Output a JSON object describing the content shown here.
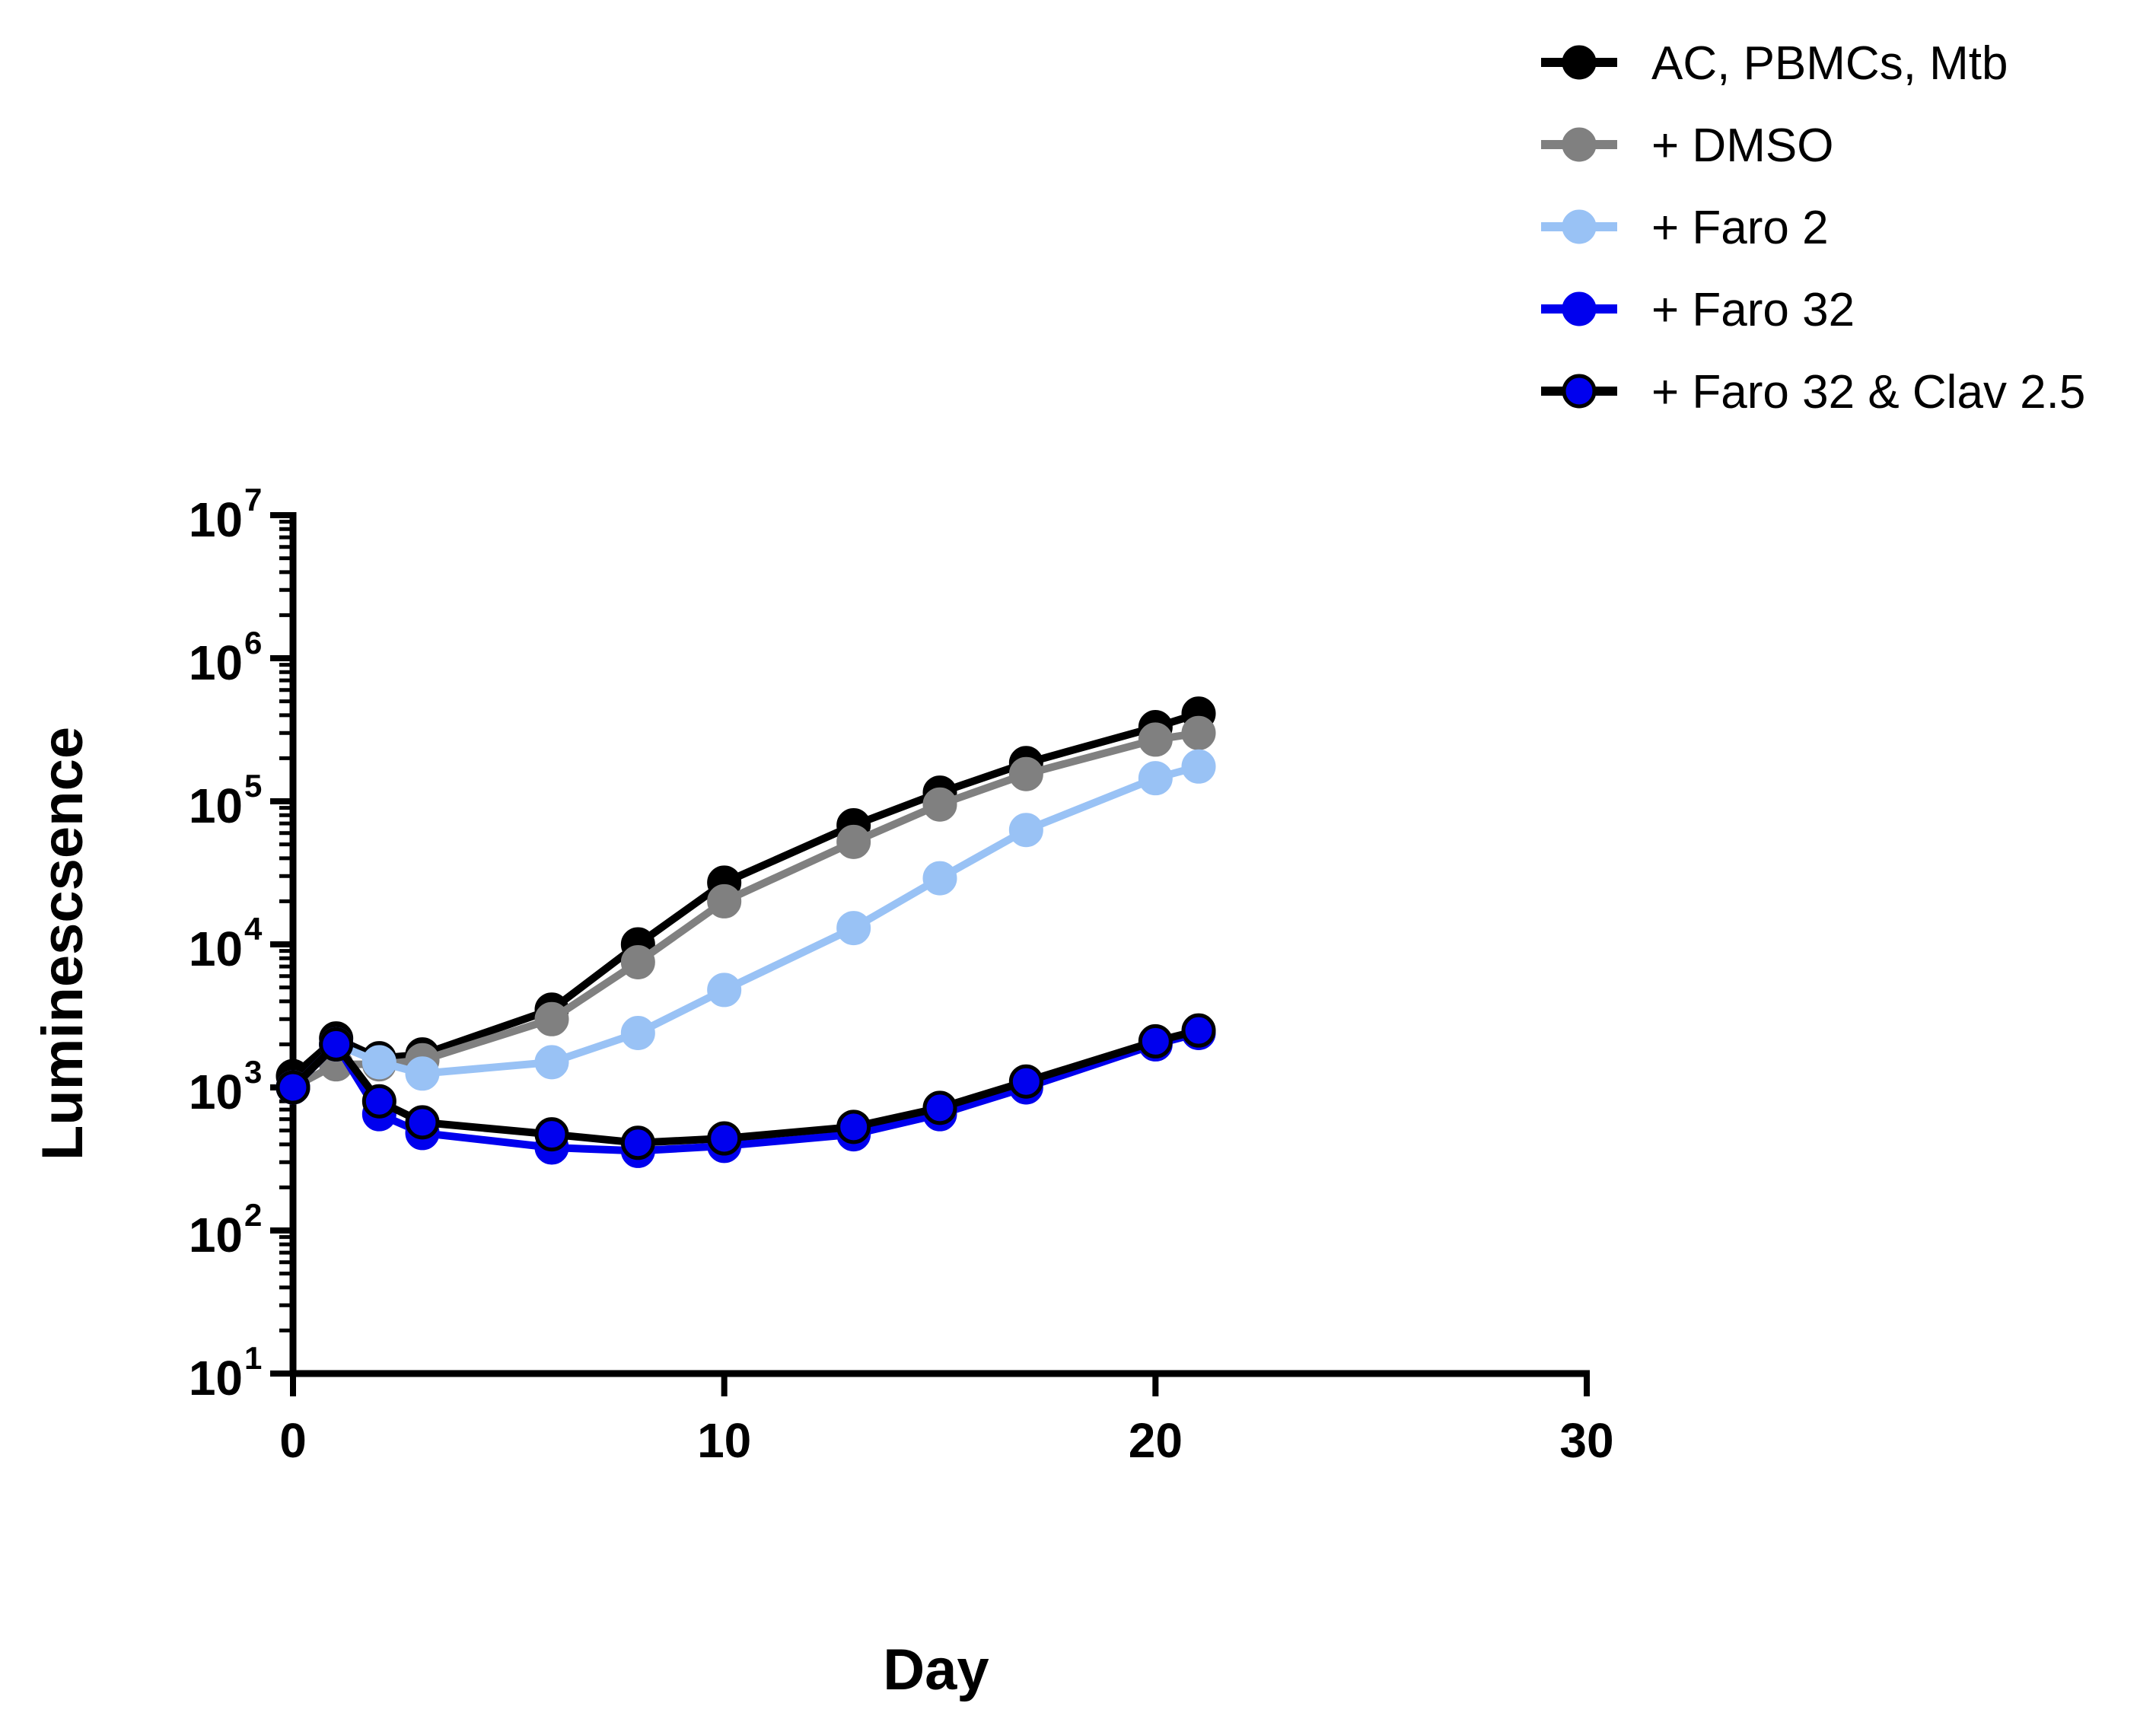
{
  "chart_data": {
    "type": "line",
    "title": "",
    "xlabel": "Day",
    "ylabel": "Luminescsence",
    "xlim": [
      0,
      30
    ],
    "ylim_log10": [
      1,
      7
    ],
    "yscale": "log",
    "x_ticks": [
      "0",
      "10",
      "20",
      "30"
    ],
    "x_tick_values": [
      0,
      10,
      20,
      30
    ],
    "y_ticks": [
      {
        "base": "10",
        "exp": "1",
        "value": 10
      },
      {
        "base": "10",
        "exp": "2",
        "value": 100
      },
      {
        "base": "10",
        "exp": "3",
        "value": 1000
      },
      {
        "base": "10",
        "exp": "4",
        "value": 10000
      },
      {
        "base": "10",
        "exp": "5",
        "value": 100000
      },
      {
        "base": "10",
        "exp": "6",
        "value": 1000000
      },
      {
        "base": "10",
        "exp": "7",
        "value": 10000000
      }
    ],
    "legend_position": "top-right",
    "x": [
      0,
      1,
      2,
      3,
      6,
      8,
      10,
      13,
      15,
      17,
      20,
      21
    ],
    "series": [
      {
        "name": "AC, PBMCs, Mtb",
        "line_color": "#000000",
        "marker_color": "#000000",
        "values": [
          1200,
          2200,
          1600,
          1700,
          3500,
          10000,
          27000,
          68000,
          115000,
          185000,
          330000,
          410000
        ]
      },
      {
        "name": "+ DMSO",
        "line_color": "#808080",
        "marker_color": "#808080",
        "values": [
          1000,
          1450,
          1450,
          1550,
          3000,
          7500,
          20000,
          52000,
          95000,
          155000,
          270000,
          300000
        ]
      },
      {
        "name": "+ Faro 2",
        "line_color": "#99c2f5",
        "marker_color": "#99c2f5",
        "values": [
          1000,
          2000,
          1500,
          1250,
          1500,
          2400,
          4800,
          13000,
          29000,
          63000,
          145000,
          175000
        ]
      },
      {
        "name": "+ Faro 32",
        "line_color": "#0000ee",
        "marker_color": "#0000ee",
        "values": [
          1000,
          2000,
          650,
          480,
          380,
          360,
          390,
          470,
          650,
          1000,
          2000,
          2400
        ]
      },
      {
        "name": "+ Faro 32 & Clav 2.5",
        "line_color": "#000000",
        "marker_color": "#0000ee",
        "values": [
          1000,
          2000,
          800,
          570,
          470,
          410,
          440,
          530,
          720,
          1100,
          2100,
          2500
        ]
      }
    ]
  }
}
